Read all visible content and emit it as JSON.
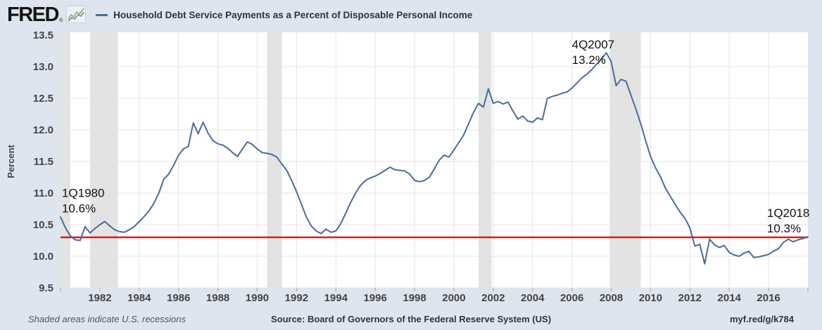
{
  "header": {
    "logo_text": "FRED",
    "logo_reg": "®",
    "logo_icon": "fred-sparkline-chart-icon",
    "series_label": "Household Debt Service Payments as a Percent of Disposable Personal Income",
    "series_color": "#4a6d9b"
  },
  "footer": {
    "recession_note": "Shaded areas indicate U.S. recessions",
    "source": "Source: Board of Governors of the Federal Reserve System (US)",
    "short_url": "myf.red/g/k784"
  },
  "chart_data": {
    "type": "line",
    "title": "Household Debt Service Payments as a Percent of Disposable Personal Income",
    "xlabel": "",
    "ylabel": "Percent",
    "ylim": [
      9.5,
      13.5
    ],
    "yticks": [
      9.5,
      10.0,
      10.5,
      11.0,
      11.5,
      12.0,
      12.5,
      13.0,
      13.5
    ],
    "x_range": [
      1980.0,
      2018.0
    ],
    "xticks": [
      1982,
      1984,
      1986,
      1988,
      1990,
      1992,
      1994,
      1996,
      1998,
      2000,
      2002,
      2004,
      2006,
      2008,
      2010,
      2012,
      2014,
      2016
    ],
    "frequency": "quarterly",
    "x_start": 1980.0,
    "x_step": 0.25,
    "grid": true,
    "legend_position": "top",
    "series": [
      {
        "name": "Household Debt Service Payments as a Percent of Disposable Personal Income",
        "color": "#4a6d9b",
        "values": [
          10.62,
          10.45,
          10.32,
          10.26,
          10.25,
          10.47,
          10.37,
          10.44,
          10.5,
          10.55,
          10.48,
          10.42,
          10.39,
          10.38,
          10.42,
          10.47,
          10.55,
          10.63,
          10.72,
          10.84,
          11.0,
          11.22,
          11.3,
          11.44,
          11.6,
          11.7,
          11.74,
          12.11,
          11.94,
          12.12,
          11.95,
          11.83,
          11.78,
          11.76,
          11.71,
          11.64,
          11.58,
          11.7,
          11.81,
          11.77,
          11.7,
          11.64,
          11.63,
          11.61,
          11.57,
          11.46,
          11.36,
          11.2,
          11.02,
          10.82,
          10.62,
          10.48,
          10.4,
          10.36,
          10.43,
          10.38,
          10.4,
          10.52,
          10.68,
          10.85,
          11.0,
          11.12,
          11.2,
          11.24,
          11.27,
          11.31,
          11.36,
          11.41,
          11.37,
          11.36,
          11.35,
          11.3,
          11.2,
          11.18,
          11.2,
          11.25,
          11.38,
          11.52,
          11.6,
          11.57,
          11.68,
          11.8,
          11.92,
          12.1,
          12.28,
          12.42,
          12.36,
          12.65,
          12.42,
          12.45,
          12.41,
          12.44,
          12.3,
          12.17,
          12.22,
          12.14,
          12.12,
          12.19,
          12.16,
          12.5,
          12.53,
          12.55,
          12.58,
          12.6,
          12.66,
          12.74,
          12.82,
          12.88,
          12.95,
          13.04,
          13.12,
          13.22,
          13.08,
          12.7,
          12.8,
          12.77,
          12.55,
          12.33,
          12.1,
          11.83,
          11.58,
          11.4,
          11.26,
          11.08,
          10.95,
          10.82,
          10.7,
          10.6,
          10.45,
          10.16,
          10.19,
          9.88,
          10.27,
          10.18,
          10.14,
          10.17,
          10.06,
          10.02,
          10.0,
          10.05,
          10.08,
          9.98,
          9.99,
          10.01,
          10.03,
          10.08,
          10.12,
          10.22,
          10.27,
          10.23,
          10.26,
          10.28,
          10.31
        ]
      }
    ],
    "reference_line": {
      "value": 10.3,
      "color": "#e01a1a"
    },
    "recessions": [
      [
        1980.0,
        1980.5
      ],
      [
        1981.5,
        1982.92
      ],
      [
        1990.5,
        1991.25
      ],
      [
        2001.25,
        2001.92
      ],
      [
        2007.92,
        2009.5
      ]
    ],
    "annotations": [
      {
        "lines": [
          "1Q1980",
          "10.6%"
        ],
        "x": 1980.07,
        "y": 10.94,
        "anchor": "start"
      },
      {
        "lines": [
          "4Q2007",
          "13.2%"
        ],
        "x": 2006.0,
        "y": 13.29,
        "anchor": "start"
      },
      {
        "lines": [
          "1Q2018",
          "10.3%"
        ],
        "x": 2015.92,
        "y": 10.62,
        "anchor": "start"
      }
    ],
    "colors": {
      "page_background": "#dfe5ee",
      "plot_background": "#ffffff",
      "grid": "#e5e5e5",
      "recession_band": "#e3e3e3",
      "tick_text": "#444444",
      "annotation_text": "#111111"
    }
  }
}
